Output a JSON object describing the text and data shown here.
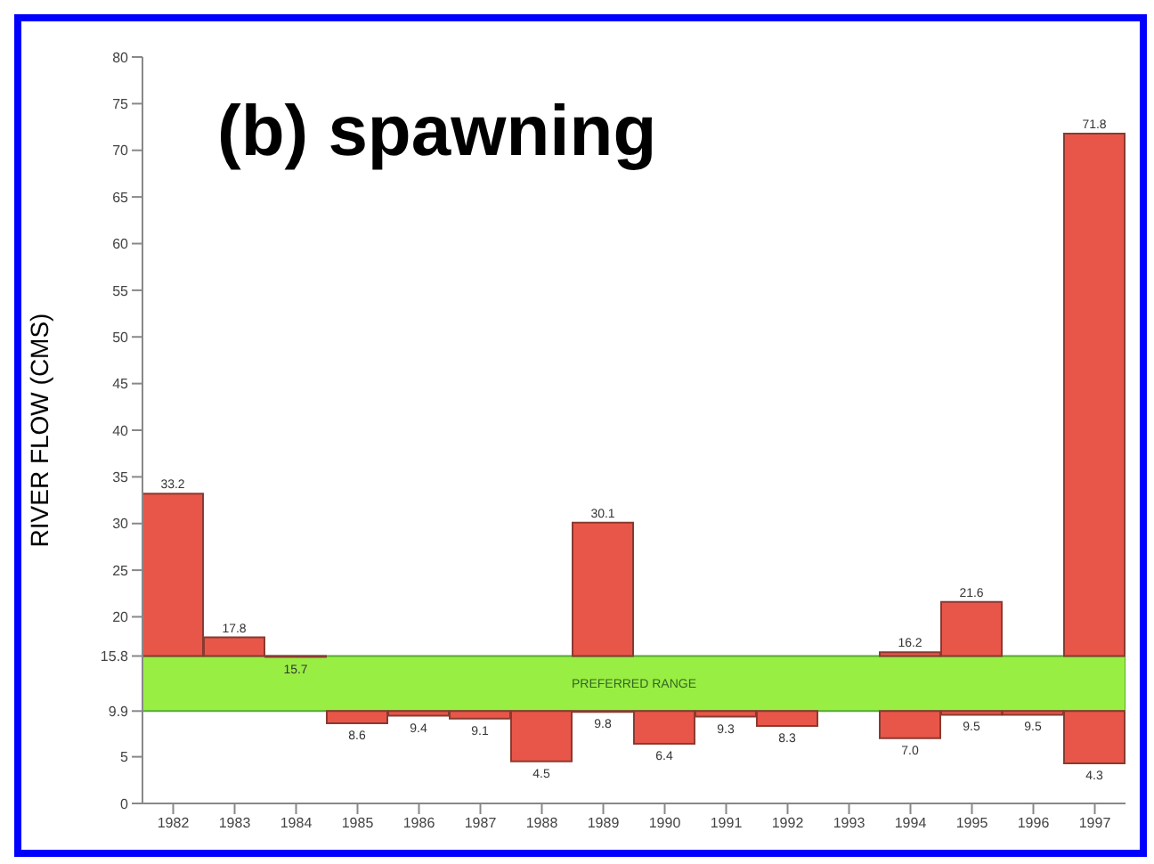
{
  "chart_data": {
    "type": "bar",
    "title": "(b) spawning",
    "ylabel": "RIVER FLOW (CMS)",
    "categories": [
      "1982",
      "1983",
      "1984",
      "1985",
      "1986",
      "1987",
      "1988",
      "1989",
      "1990",
      "1991",
      "1992",
      "1993",
      "1994",
      "1995",
      "1996",
      "1997"
    ],
    "series": [
      {
        "color": "#e8564a",
        "base": [
          15.8,
          15.8,
          15.8,
          null,
          null,
          null,
          null,
          15.8,
          null,
          null,
          null,
          null,
          15.8,
          15.8,
          null,
          15.8
        ],
        "values": [
          17.4,
          2.0,
          -0.1,
          null,
          null,
          null,
          null,
          14.3,
          null,
          null,
          null,
          null,
          0.4,
          5.8,
          null,
          56.0
        ],
        "value_labels": [
          "33.2",
          "17.8",
          "15.7",
          null,
          null,
          null,
          null,
          "30.1",
          null,
          null,
          null,
          null,
          "16.2",
          "21.6",
          null,
          "71.8"
        ]
      },
      {
        "color": "#e8564a",
        "base": [
          null,
          null,
          null,
          9.9,
          9.9,
          9.9,
          9.9,
          9.9,
          9.9,
          9.9,
          9.9,
          null,
          9.9,
          9.9,
          9.9,
          9.9
        ],
        "values": [
          null,
          null,
          null,
          -1.3,
          -0.5,
          -0.8,
          -5.4,
          -0.1,
          -3.5,
          -0.6,
          -1.6,
          null,
          -2.9,
          -0.4,
          -0.4,
          -5.6
        ],
        "value_labels": [
          null,
          null,
          null,
          "8.6",
          "9.4",
          "9.1",
          "4.5",
          "9.8",
          "6.4",
          "9.3",
          "8.3",
          null,
          "7.0",
          "9.5",
          "9.5",
          "4.3"
        ]
      }
    ],
    "bands": [
      {
        "axis": "y",
        "from": 9.9,
        "to": 15.8,
        "label": "PREFERRED RANGE",
        "color": "#99ee44"
      }
    ],
    "ylim": [
      0,
      80
    ],
    "yticks": [
      0,
      5,
      9.9,
      15.8,
      20,
      25,
      30,
      35,
      40,
      45,
      50,
      55,
      60,
      65,
      70,
      75,
      80
    ],
    "grid": false,
    "legend": false
  }
}
